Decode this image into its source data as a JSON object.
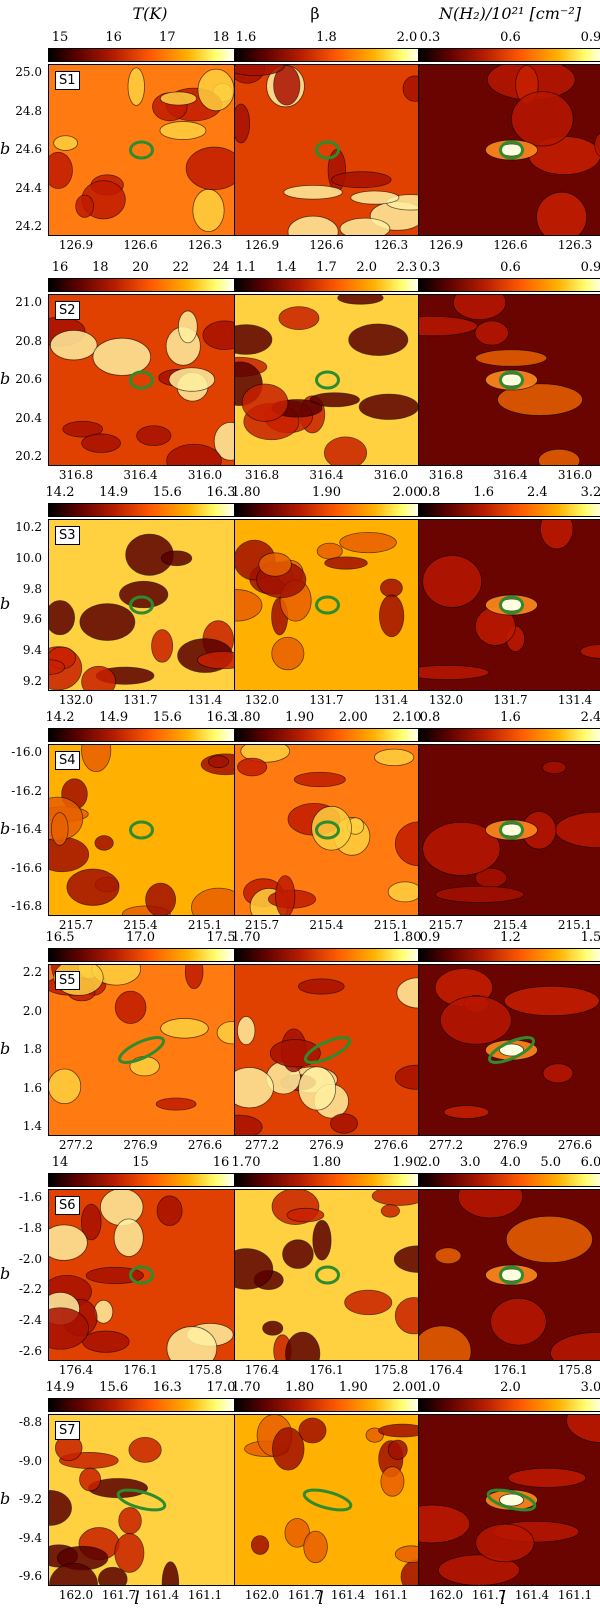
{
  "column_titles": [
    "T(K)",
    "β",
    "N(H₂)/10²¹ [cm⁻²]"
  ],
  "axis_labels": {
    "x": "l",
    "y": "b"
  },
  "chart_data": [
    {
      "type": "heatmap",
      "source": "S1",
      "cbars": [
        [
          "15",
          "16",
          "17",
          "18"
        ],
        [
          "1.6",
          "1.8",
          "2.0"
        ],
        [
          "0.3",
          "0.6",
          "0.9"
        ]
      ],
      "yticks": [
        "25.0",
        "24.8",
        "24.6",
        "24.4",
        "24.2"
      ],
      "xticks": [
        "126.9",
        "126.6",
        "126.3"
      ]
    },
    {
      "type": "heatmap",
      "source": "S2",
      "cbars": [
        [
          "16",
          "18",
          "20",
          "22",
          "24"
        ],
        [
          "1.1",
          "1.4",
          "1.7",
          "2.0",
          "2.3"
        ],
        [
          "0.3",
          "0.6",
          "0.9"
        ]
      ],
      "yticks": [
        "21.0",
        "20.8",
        "20.6",
        "20.4",
        "20.2"
      ],
      "xticks": [
        "316.8",
        "316.4",
        "316.0"
      ]
    },
    {
      "type": "heatmap",
      "source": "S3",
      "cbars": [
        [
          "14.2",
          "14.9",
          "15.6",
          "16.3"
        ],
        [
          "1.80",
          "1.90",
          "2.00"
        ],
        [
          "0.8",
          "1.6",
          "2.4",
          "3.2"
        ]
      ],
      "yticks": [
        "10.2",
        "10.0",
        "9.8",
        "9.6",
        "9.4",
        "9.2"
      ],
      "xticks": [
        "132.0",
        "131.7",
        "131.4"
      ]
    },
    {
      "type": "heatmap",
      "source": "S4",
      "cbars": [
        [
          "14.2",
          "14.9",
          "15.6",
          "16.3"
        ],
        [
          "1.80",
          "1.90",
          "2.00",
          "2.10"
        ],
        [
          "0.8",
          "1.6",
          "2.4"
        ]
      ],
      "yticks": [
        "-16.0",
        "-16.2",
        "-16.4",
        "-16.6",
        "-16.8"
      ],
      "xticks": [
        "215.7",
        "215.4",
        "215.1"
      ]
    },
    {
      "type": "heatmap",
      "source": "S5",
      "cbars": [
        [
          "16.5",
          "17.0",
          "17.5"
        ],
        [
          "1.70",
          "1.80"
        ],
        [
          "0.9",
          "1.2",
          "1.5"
        ]
      ],
      "yticks": [
        "2.2",
        "2.0",
        "1.8",
        "1.6",
        "1.4"
      ],
      "xticks": [
        "277.2",
        "276.9",
        "276.6"
      ]
    },
    {
      "type": "heatmap",
      "source": "S6",
      "cbars": [
        [
          "14",
          "15",
          "16"
        ],
        [
          "1.70",
          "1.80",
          "1.90"
        ],
        [
          "2.0",
          "3.0",
          "4.0",
          "5.0",
          "6.0"
        ]
      ],
      "yticks": [
        "-1.6",
        "-1.8",
        "-2.0",
        "-2.2",
        "-2.4",
        "-2.6"
      ],
      "xticks": [
        "176.4",
        "176.1",
        "175.8"
      ]
    },
    {
      "type": "heatmap",
      "source": "S7",
      "cbars": [
        [
          "14.9",
          "15.6",
          "16.3",
          "17.0"
        ],
        [
          "1.70",
          "1.80",
          "1.90",
          "2.00"
        ],
        [
          "1.0",
          "2.0",
          "3.0"
        ]
      ],
      "yticks": [
        "-8.8",
        "-9.0",
        "-9.2",
        "-9.4",
        "-9.6"
      ],
      "xticks": [
        "162.0",
        "161.7",
        "161.4",
        "161.1"
      ]
    }
  ]
}
